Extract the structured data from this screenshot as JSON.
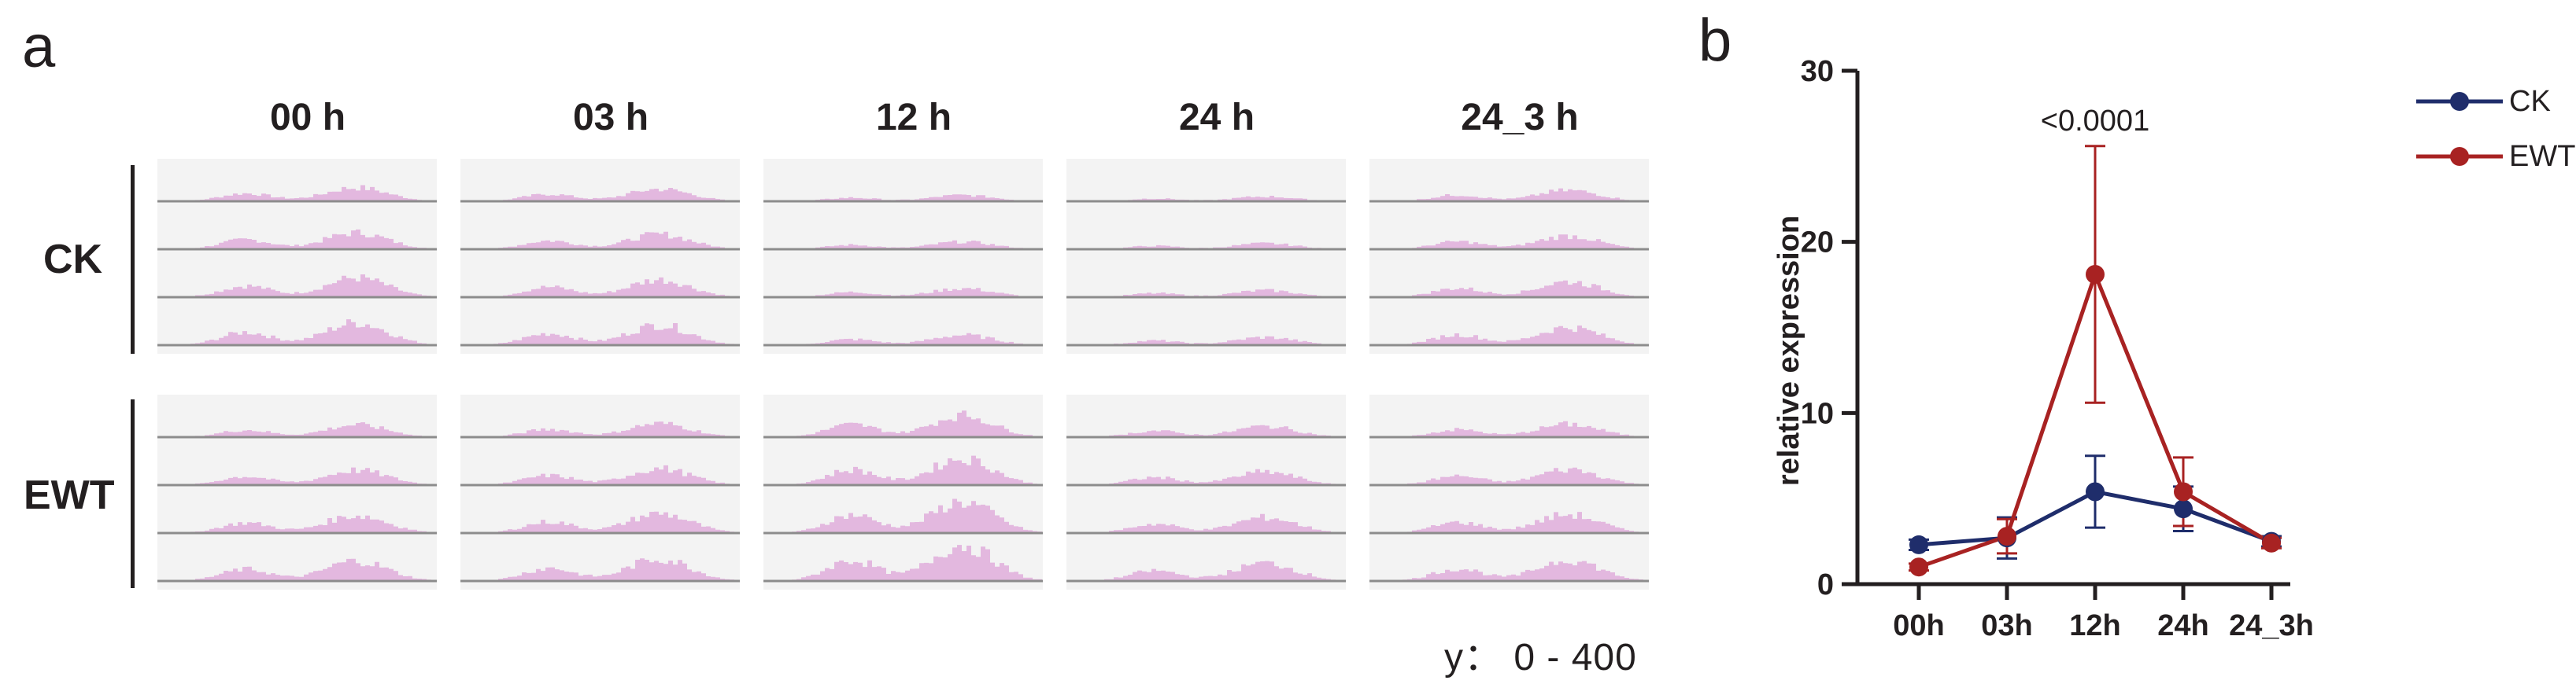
{
  "panel_a": {
    "letter": "a",
    "columns": [
      "00 h",
      "03 h",
      "12 h",
      "24 h",
      "24_3 h"
    ],
    "groups": [
      "CK",
      "EWT"
    ],
    "y_range_label": "y： 0 - 400",
    "track_color": "#e3b8df",
    "baseline_color": "#8c8c8c"
  },
  "chart_data": {
    "type": "line",
    "letter": "b",
    "categories": [
      "00h",
      "03h",
      "12h",
      "24h",
      "24_3h"
    ],
    "ylabel": "relative expression",
    "xlabel": "",
    "ylim": [
      0,
      30
    ],
    "yticks": [
      0,
      10,
      20,
      30
    ],
    "annotation": {
      "text": "<0.0001",
      "category": "12h"
    },
    "legend_position": "top-right",
    "series": [
      {
        "name": "CK",
        "color": "#1f2d6b",
        "values": [
          2.3,
          2.7,
          5.4,
          4.4,
          2.5
        ],
        "errors": [
          0.3,
          1.2,
          2.1,
          1.3,
          0.3
        ]
      },
      {
        "name": "EWT",
        "color": "#a82222",
        "values": [
          1.0,
          2.8,
          18.1,
          5.4,
          2.4
        ],
        "errors": [
          0.2,
          1.0,
          7.5,
          2.0,
          0.3
        ]
      }
    ]
  }
}
